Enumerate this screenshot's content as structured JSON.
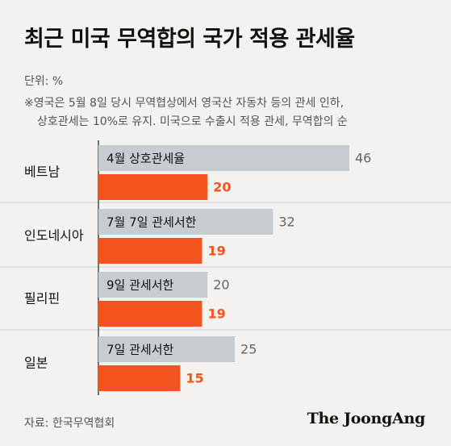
{
  "title": "최근 미국 무역합의 국가 적용 관세율",
  "unit": "단위: %",
  "note": [
    "※영국은 5월 8일 당시 무역협상에서 영국산 자동차 등의 관세 인하,",
    "상호관세는 10%로 유지. 미국으로 수출시 적용 관세, 무역합의 순"
  ],
  "source": "자료: 한국무역협회",
  "brand": "The JoongAng",
  "colors": {
    "gray_bar": "#c7ccd1",
    "accent_bar": "#f2531f",
    "gray_label": "#666666",
    "accent_label": "#f2531f"
  },
  "chart_data": {
    "type": "bar",
    "orientation": "horizontal",
    "categories": [
      "베트남",
      "인도네시아",
      "필리핀",
      "일본"
    ],
    "series": [
      {
        "values": [
          46,
          32,
          20,
          25
        ],
        "bar_labels": [
          "4월 상호관세율",
          "7월 7일 관세서한",
          "9일 관세서한",
          "7일 관세서한"
        ]
      },
      {
        "values": [
          20,
          19,
          19,
          15
        ]
      }
    ],
    "xlim": [
      0,
      46
    ],
    "grid": false
  }
}
